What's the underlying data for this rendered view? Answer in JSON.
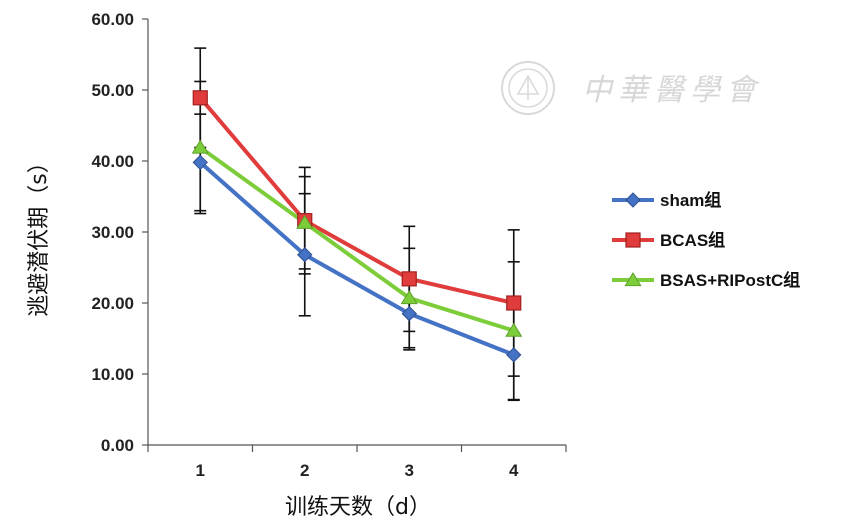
{
  "watermark": {
    "text": "中華醫學會"
  },
  "chart_data": {
    "type": "line",
    "categories": [
      "1",
      "2",
      "3",
      "4"
    ],
    "xlabel": "训练天数（d）",
    "ylabel": "逃避潜伏期（s）",
    "ylim": [
      0,
      60
    ],
    "yticks": [
      "0.00",
      "10.00",
      "20.00",
      "30.00",
      "40.00",
      "50.00",
      "60.00"
    ],
    "grid": false,
    "legend_position": "right",
    "series": [
      {
        "name": "sham组",
        "color": "#4472c4",
        "marker": "diamond",
        "values": [
          39.8,
          26.8,
          18.5,
          12.7
        ],
        "errors": [
          6.8,
          8.6,
          5.1,
          6.4
        ]
      },
      {
        "name": "BCAS组",
        "color": "#e03c3c",
        "marker": "square",
        "values": [
          48.9,
          31.6,
          23.4,
          20.0
        ],
        "errors": [
          7.0,
          7.5,
          7.4,
          10.3
        ]
      },
      {
        "name": "BSAS+RIPostC组",
        "color": "#7dcc3a",
        "marker": "triangle",
        "values": [
          41.9,
          31.3,
          20.7,
          16.1
        ],
        "errors": [
          9.3,
          6.5,
          7.0,
          9.7
        ]
      }
    ]
  }
}
